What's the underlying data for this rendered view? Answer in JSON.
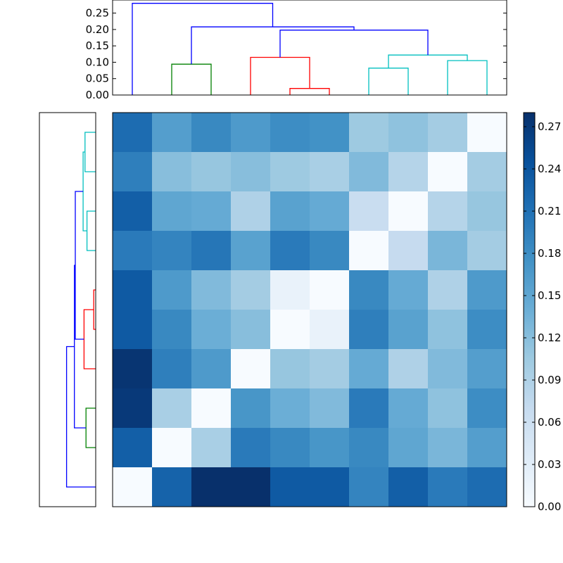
{
  "chart_data": [
    {
      "type": "dendrogram",
      "orientation": "top",
      "ylim": [
        0,
        0.29
      ],
      "yticks": [
        "0.00",
        "0.05",
        "0.10",
        "0.15",
        "0.20",
        "0.25"
      ],
      "segments": [
        {
          "color": "#008000",
          "x": [
            1.5,
            1.5,
            2.5,
            2.5
          ],
          "y": [
            0,
            0.094,
            0.094,
            0
          ]
        },
        {
          "color": "#ff0000",
          "x": [
            4.5,
            4.5,
            5.5,
            5.5
          ],
          "y": [
            0,
            0.02,
            0.02,
            0
          ]
        },
        {
          "color": "#ff0000",
          "x": [
            3.5,
            3.5,
            5.0,
            5.0
          ],
          "y": [
            0,
            0.115,
            0.115,
            0.02
          ]
        },
        {
          "color": "#00bfbf",
          "x": [
            6.5,
            6.5,
            7.5,
            7.5
          ],
          "y": [
            0,
            0.082,
            0.082,
            0
          ]
        },
        {
          "color": "#00bfbf",
          "x": [
            8.5,
            8.5,
            9.5,
            9.5
          ],
          "y": [
            0,
            0.105,
            0.105,
            0
          ]
        },
        {
          "color": "#00bfbf",
          "x": [
            7.0,
            7.0,
            9.0,
            9.0
          ],
          "y": [
            0.082,
            0.122,
            0.122,
            0.105
          ]
        },
        {
          "color": "#0000ff",
          "x": [
            4.25,
            4.25,
            8.0,
            8.0
          ],
          "y": [
            0.115,
            0.198,
            0.198,
            0.122
          ]
        },
        {
          "color": "#0000ff",
          "x": [
            2.0,
            2.0,
            6.125,
            6.125
          ],
          "y": [
            0.094,
            0.208,
            0.208,
            0.198
          ]
        },
        {
          "color": "#0000ff",
          "x": [
            0.5,
            0.5,
            4.0625,
            4.0625
          ],
          "y": [
            0,
            0.28,
            0.28,
            0.208
          ]
        }
      ]
    },
    {
      "type": "dendrogram",
      "orientation": "left",
      "xlim": [
        0,
        0.29
      ],
      "segments": [
        {
          "color": "#00bfbf",
          "y": [
            0.5,
            0.5,
            1.5,
            1.5
          ],
          "x": [
            0,
            0.055,
            0.055,
            0
          ]
        },
        {
          "color": "#00bfbf",
          "y": [
            2.5,
            2.5,
            3.5,
            3.5
          ],
          "x": [
            0,
            0.045,
            0.045,
            0
          ]
        },
        {
          "color": "#00bfbf",
          "y": [
            1.0,
            1.0,
            3.0,
            3.0
          ],
          "x": [
            0.055,
            0.065,
            0.065,
            0.045
          ]
        },
        {
          "color": "#ff0000",
          "y": [
            4.5,
            4.5,
            5.5,
            5.5
          ],
          "x": [
            0,
            0.01,
            0.01,
            0
          ]
        },
        {
          "color": "#ff0000",
          "y": [
            5.0,
            5.0,
            6.5,
            6.5
          ],
          "x": [
            0.01,
            0.06,
            0.06,
            0
          ]
        },
        {
          "color": "#0000ff",
          "y": [
            2.0,
            2.0,
            5.75,
            5.75
          ],
          "x": [
            0.065,
            0.105,
            0.105,
            0.06
          ]
        },
        {
          "color": "#008000",
          "y": [
            7.5,
            7.5,
            8.5,
            8.5
          ],
          "x": [
            0,
            0.05,
            0.05,
            0
          ]
        },
        {
          "color": "#0000ff",
          "y": [
            3.875,
            3.875,
            8.0,
            8.0
          ],
          "x": [
            0.105,
            0.11,
            0.11,
            0.05
          ]
        },
        {
          "color": "#0000ff",
          "y": [
            5.9375,
            5.9375,
            9.5,
            9.5
          ],
          "x": [
            0.11,
            0.15,
            0.15,
            0
          ]
        }
      ]
    },
    {
      "type": "heatmap",
      "colormap": "Blues",
      "vmin": 0,
      "vmax": 0.28,
      "values": [
        [
          0.215,
          0.16,
          0.185,
          0.165,
          0.18,
          0.175,
          0.105,
          0.115,
          0.1,
          0.0
        ],
        [
          0.195,
          0.12,
          0.11,
          0.12,
          0.105,
          0.095,
          0.125,
          0.085,
          0.0,
          0.1
        ],
        [
          0.23,
          0.15,
          0.145,
          0.09,
          0.155,
          0.145,
          0.065,
          0.0,
          0.085,
          0.11
        ],
        [
          0.2,
          0.19,
          0.205,
          0.155,
          0.2,
          0.185,
          0.0,
          0.07,
          0.13,
          0.1
        ],
        [
          0.235,
          0.165,
          0.125,
          0.1,
          0.02,
          0.0,
          0.185,
          0.145,
          0.09,
          0.165
        ],
        [
          0.235,
          0.185,
          0.14,
          0.12,
          0.0,
          0.02,
          0.195,
          0.155,
          0.115,
          0.18
        ],
        [
          0.275,
          0.195,
          0.165,
          0.0,
          0.11,
          0.1,
          0.145,
          0.09,
          0.125,
          0.16
        ],
        [
          0.27,
          0.095,
          0.0,
          0.17,
          0.14,
          0.125,
          0.2,
          0.145,
          0.115,
          0.18
        ],
        [
          0.23,
          0.0,
          0.095,
          0.2,
          0.185,
          0.17,
          0.185,
          0.15,
          0.13,
          0.16
        ],
        [
          0.0,
          0.225,
          0.28,
          0.28,
          0.235,
          0.235,
          0.19,
          0.23,
          0.2,
          0.215
        ]
      ]
    },
    {
      "type": "colorbar",
      "colormap": "Blues",
      "range": [
        0,
        0.28
      ],
      "ticks": [
        "0.00",
        "0.03",
        "0.06",
        "0.09",
        "0.12",
        "0.15",
        "0.18",
        "0.21",
        "0.24",
        "0.27"
      ]
    }
  ]
}
